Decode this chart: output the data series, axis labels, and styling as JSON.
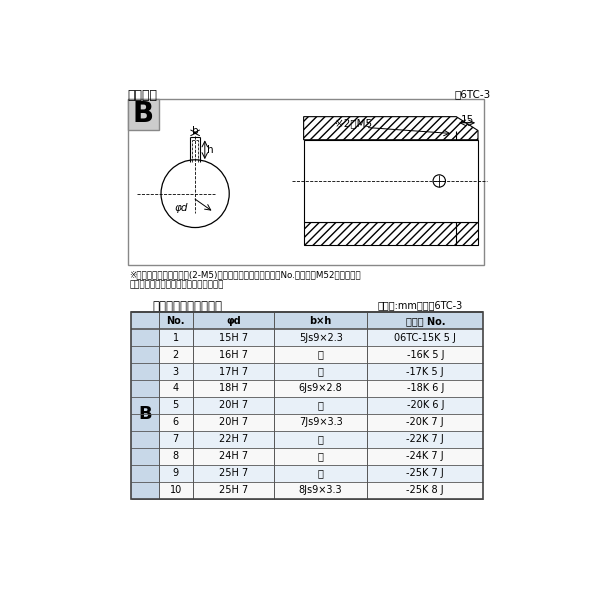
{
  "title_left": "軸穴形状",
  "title_right": "図6TC-3",
  "diagram_note1": "※セットボルト用タップ(2-M5)が必要な場合は右記コードNo.の末尾にM52を付ける。",
  "diagram_note2": "（セットボルトは付属されています。）",
  "table_title": "軸穴形状コード一覧表",
  "table_unit": "（単位:mm）　表6TC-3",
  "header": [
    "No.",
    "φd",
    "b×h",
    "コード No."
  ],
  "rows": [
    [
      "1",
      "15H 7",
      "5Js9×2.3",
      "06TC-15K 5 J"
    ],
    [
      "2",
      "16H 7",
      "〃",
      "-16K 5 J"
    ],
    [
      "3",
      "17H 7",
      "〃",
      "-17K 5 J"
    ],
    [
      "4",
      "18H 7",
      "6Js9×2.8",
      "-18K 6 J"
    ],
    [
      "5",
      "20H 7",
      "〃",
      "-20K 6 J"
    ],
    [
      "6",
      "20H 7",
      "7Js9×3.3",
      "-20K 7 J"
    ],
    [
      "7",
      "22H 7",
      "〃",
      "-22K 7 J"
    ],
    [
      "8",
      "24H 7",
      "〃",
      "-24K 7 J"
    ],
    [
      "9",
      "25H 7",
      "〃",
      "-25K 7 J"
    ],
    [
      "10",
      "25H 7",
      "8Js9×3.3",
      "-25K 8 J"
    ]
  ],
  "bg_color": "#ffffff",
  "table_header_bg": "#c8d8e8",
  "table_row_bg": "#e8f0f8",
  "table_alt_bg": "#f8f8f8",
  "border_color": "#555555"
}
